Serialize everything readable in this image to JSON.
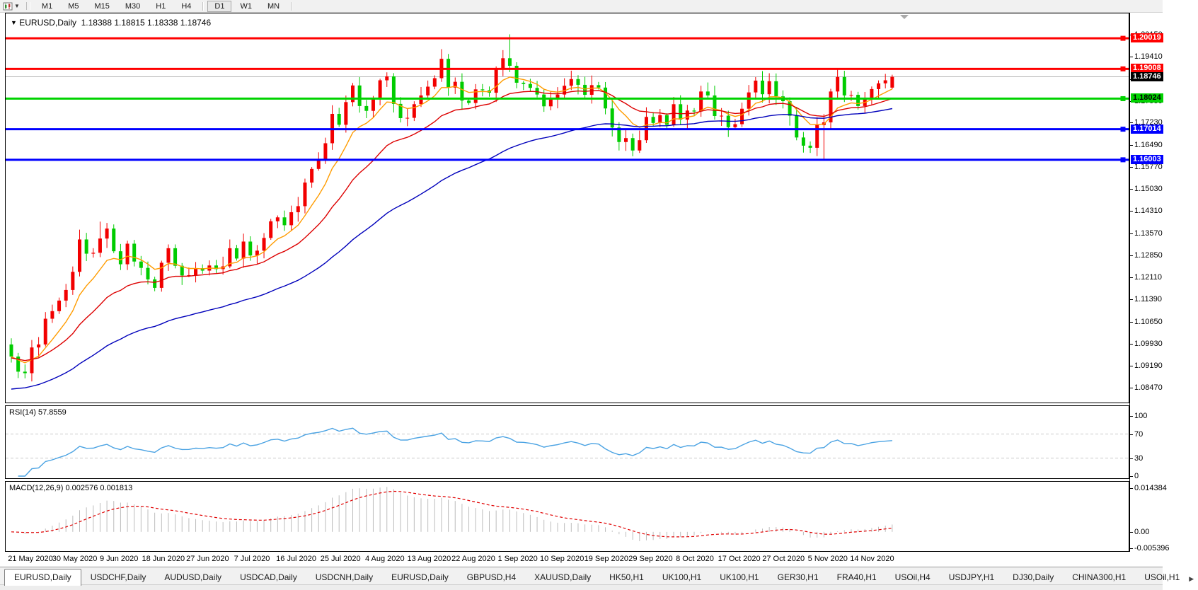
{
  "toolbar": {
    "chart_icon": "📊",
    "dropdown_icon": "▼",
    "timeframes": [
      {
        "label": "M1",
        "active": false
      },
      {
        "label": "M5",
        "active": false
      },
      {
        "label": "M15",
        "active": false
      },
      {
        "label": "M30",
        "active": false
      },
      {
        "label": "H1",
        "active": false
      },
      {
        "label": "H4",
        "active": false
      },
      {
        "label": "D1",
        "active": true
      },
      {
        "label": "W1",
        "active": false
      },
      {
        "label": "MN",
        "active": false
      }
    ]
  },
  "chart_title": {
    "dropdown_icon": "▼",
    "symbol": "EURUSD,Daily",
    "ohlc": "1.18388 1.18815 1.18338 1.18746"
  },
  "chart_data": [
    {
      "type": "candlestick",
      "symbol": "EURUSD",
      "timeframe": "Daily",
      "title_ohlc": {
        "open": 1.18388,
        "high": 1.18815,
        "low": 1.18338,
        "close": 1.18746
      },
      "x_labels": [
        "21 May 2020",
        "30 May 2020",
        "9 Jun 2020",
        "18 Jun 2020",
        "27 Jun 2020",
        "7 Jul 2020",
        "16 Jul 2020",
        "25 Jul 2020",
        "4 Aug 2020",
        "13 Aug 2020",
        "22 Aug 2020",
        "1 Sep 2020",
        "10 Sep 2020",
        "19 Sep 2020",
        "29 Sep 2020",
        "8 Oct 2020",
        "17 Oct 2020",
        "27 Oct 2020",
        "5 Nov 2020",
        "14 Nov 2020"
      ],
      "first_open": 1.099,
      "closes": [
        1.095,
        1.09,
        1.0895,
        1.098,
        1.099,
        1.1075,
        1.11,
        1.1135,
        1.117,
        1.123,
        1.1337,
        1.129,
        1.1293,
        1.134,
        1.1373,
        1.1298,
        1.1255,
        1.1323,
        1.1264,
        1.1243,
        1.1205,
        1.1177,
        1.126,
        1.1308,
        1.125,
        1.1218,
        1.1219,
        1.1242,
        1.1234,
        1.1251,
        1.1239,
        1.1248,
        1.1308,
        1.1274,
        1.133,
        1.1284,
        1.13,
        1.1342,
        1.1397,
        1.141,
        1.1384,
        1.1427,
        1.1447,
        1.1525,
        1.157,
        1.1598,
        1.1655,
        1.1752,
        1.1716,
        1.1791,
        1.1846,
        1.1778,
        1.1762,
        1.1803,
        1.1863,
        1.1876,
        1.1785,
        1.1738,
        1.1739,
        1.1784,
        1.1813,
        1.1842,
        1.187,
        1.1934,
        1.1839,
        1.1858,
        1.1796,
        1.1788,
        1.1833,
        1.183,
        1.1822,
        1.1903,
        1.1936,
        1.1911,
        1.1855,
        1.1851,
        1.1838,
        1.1816,
        1.1777,
        1.1801,
        1.1816,
        1.1845,
        1.1867,
        1.1848,
        1.1815,
        1.1847,
        1.1839,
        1.177,
        1.1707,
        1.1659,
        1.1672,
        1.1631,
        1.1665,
        1.1742,
        1.1722,
        1.1748,
        1.1716,
        1.1784,
        1.1733,
        1.1763,
        1.176,
        1.1826,
        1.1813,
        1.1745,
        1.1746,
        1.1708,
        1.1718,
        1.1769,
        1.1823,
        1.1862,
        1.1817,
        1.186,
        1.181,
        1.1794,
        1.1746,
        1.1674,
        1.1647,
        1.164,
        1.1715,
        1.1724,
        1.1826,
        1.1874,
        1.1813,
        1.1815,
        1.1778,
        1.1803,
        1.1834,
        1.1853,
        1.1863,
        1.18746
      ],
      "wick_overrides": {
        "2": {
          "l": 1.0878
        },
        "13": {
          "h": 1.1396
        },
        "63": {
          "h": 1.1966
        },
        "73": {
          "h": 1.2015
        },
        "91": {
          "l": 1.1612
        },
        "117": {
          "l": 1.1623
        },
        "119": {
          "l": 1.1603
        }
      },
      "last_bar_ohlc": [
        1.18388,
        1.18815,
        1.18338,
        1.18746
      ],
      "ylim": [
        1.0798,
        1.2084
      ],
      "y_ticks": [
        "1.20150",
        "1.19410",
        "1.18670",
        "1.17950",
        "1.17230",
        "1.16490",
        "1.15770",
        "1.15030",
        "1.14310",
        "1.13570",
        "1.12850",
        "1.12110",
        "1.11390",
        "1.10650",
        "1.09930",
        "1.09190",
        "1.08470"
      ],
      "h_lines": [
        {
          "price": 1.20019,
          "label": "1.20019",
          "color": "#ff0000",
          "text_color": "#ffffff"
        },
        {
          "price": 1.19008,
          "label": "1.19008",
          "color": "#ff0000",
          "text_color": "#ffffff"
        },
        {
          "price": 1.18024,
          "label": "1.18024",
          "color": "#00d300",
          "text_color": "#000000"
        },
        {
          "price": 1.17014,
          "label": "1.17014",
          "color": "#0000ff",
          "text_color": "#ffffff"
        },
        {
          "price": 1.16003,
          "label": "1.16003",
          "color": "#0000ff",
          "text_color": "#ffffff"
        }
      ],
      "current_price": {
        "value": 1.18746,
        "label": "1.18746",
        "line_color": "#b8b8b8",
        "tag_bg": "#000000",
        "text_color": "#ffffff"
      },
      "ma_lines": [
        {
          "name": "fast-ma",
          "period": 8,
          "color": "#ff9c00",
          "seed": 1.095
        },
        {
          "name": "medium-ma",
          "period": 20,
          "color": "#dd0000",
          "seed": 1.0945
        },
        {
          "name": "slow-ma",
          "period": 50,
          "color": "#0000bb",
          "seed": 1.0838
        }
      ],
      "colors": {
        "bull": "#f20000",
        "bear": "#00cc00"
      },
      "grid": false,
      "legend_position": "none"
    },
    {
      "type": "line",
      "name": "RSI",
      "label": "RSI(14) 57.8559",
      "period": 14,
      "current_value": 57.8559,
      "levels": [
        70,
        30
      ],
      "y_ticks": [
        "100",
        "70",
        "30",
        "0"
      ],
      "ylim": [
        0,
        100
      ],
      "color": "#4ba3e3",
      "level_color": "#c8c8c8"
    },
    {
      "type": "bar",
      "name": "MACD",
      "label": "MACD(12,26,9) 0.002576 0.001813",
      "params": [
        12,
        26,
        9
      ],
      "current_values": [
        0.002576,
        0.001813
      ],
      "y_ticks": [
        "0.014384",
        "0.00",
        "-0.005396"
      ],
      "ylim": [
        -0.005396,
        0.014384
      ],
      "histogram_color": "#bcbcbc",
      "signal_color": "#e00000"
    }
  ],
  "scroll_marker": {
    "icon": "▼",
    "color": "#a9a9a9"
  },
  "tabbar": {
    "tabs": [
      {
        "label": "EURUSD,Daily",
        "active": true
      },
      {
        "label": "USDCHF,Daily",
        "active": false
      },
      {
        "label": "AUDUSD,Daily",
        "active": false
      },
      {
        "label": "USDCAD,Daily",
        "active": false
      },
      {
        "label": "USDCNH,Daily",
        "active": false
      },
      {
        "label": "EURUSD,Daily",
        "active": false
      },
      {
        "label": "GBPUSD,H4",
        "active": false
      },
      {
        "label": "XAUUSD,Daily",
        "active": false
      },
      {
        "label": "HK50,H1",
        "active": false
      },
      {
        "label": "UK100,H1",
        "active": false
      },
      {
        "label": "UK100,H1",
        "active": false
      },
      {
        "label": "GER30,H1",
        "active": false
      },
      {
        "label": "FRA40,H1",
        "active": false
      },
      {
        "label": "USOil,H4",
        "active": false
      },
      {
        "label": "USDJPY,H1",
        "active": false
      },
      {
        "label": "DJ30,Daily",
        "active": false
      },
      {
        "label": "CHINA300,H1",
        "active": false
      },
      {
        "label": "USOil,H1",
        "active": false
      }
    ],
    "scroll_right_icon": "▶"
  }
}
